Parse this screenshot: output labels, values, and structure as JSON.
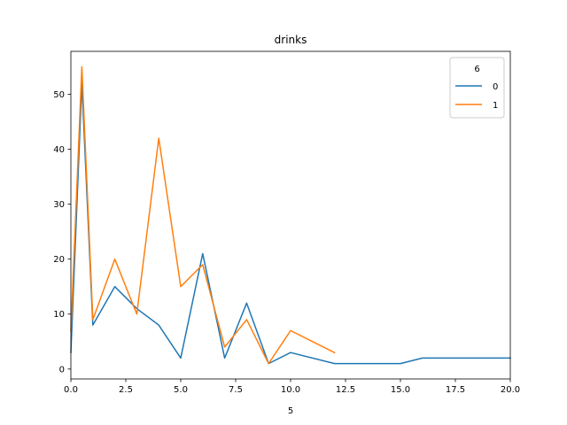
{
  "chart_data": {
    "type": "line",
    "title": "drinks",
    "xlabel": "5",
    "ylabel": "",
    "xlim": [
      0,
      20
    ],
    "ylim": [
      -1.8,
      57.8
    ],
    "xticks": [
      0.0,
      2.5,
      5.0,
      7.5,
      10.0,
      12.5,
      15.0,
      17.5,
      20.0
    ],
    "xtick_labels": [
      "0.0",
      "2.5",
      "5.0",
      "7.5",
      "10.0",
      "12.5",
      "15.0",
      "17.5",
      "20.0"
    ],
    "yticks": [
      0,
      10,
      20,
      30,
      40,
      50
    ],
    "ytick_labels": [
      "0",
      "10",
      "20",
      "30",
      "40",
      "50"
    ],
    "grid": false,
    "legend": {
      "title": "6",
      "placement": "top-right"
    },
    "series": [
      {
        "name": "0",
        "color": "#1f77b4",
        "points": [
          [
            0,
            3
          ],
          [
            0.5,
            52
          ],
          [
            1,
            8
          ],
          [
            2,
            15
          ],
          [
            3,
            11
          ],
          [
            4,
            8
          ],
          [
            5,
            2
          ],
          [
            6,
            21
          ],
          [
            7,
            2
          ],
          [
            8,
            12
          ],
          [
            9,
            1
          ],
          [
            10,
            3
          ],
          [
            12,
            1
          ],
          [
            13,
            1
          ],
          [
            14,
            1
          ],
          [
            15,
            1
          ],
          [
            16,
            2
          ],
          [
            18,
            2
          ],
          [
            20,
            2
          ]
        ]
      },
      {
        "name": "1",
        "color": "#ff7f0e",
        "points": [
          [
            0,
            7
          ],
          [
            0.5,
            55
          ],
          [
            1,
            9
          ],
          [
            2,
            20
          ],
          [
            3,
            10
          ],
          [
            4,
            42
          ],
          [
            5,
            15
          ],
          [
            6,
            19
          ],
          [
            7,
            4
          ],
          [
            8,
            9
          ],
          [
            9,
            1
          ],
          [
            10,
            7
          ],
          [
            12,
            3
          ]
        ]
      }
    ]
  }
}
